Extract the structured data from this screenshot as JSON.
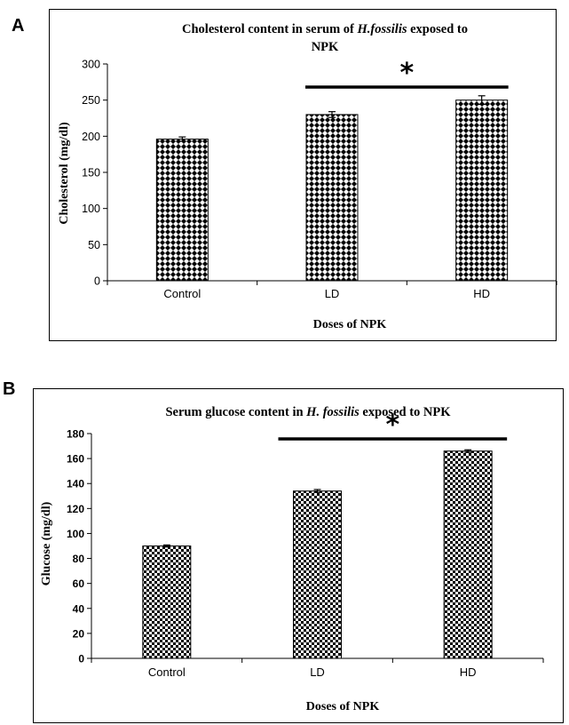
{
  "panels": [
    {
      "letter": "A"
    },
    {
      "letter": "B"
    }
  ],
  "chart_data": [
    {
      "type": "bar",
      "title_line1_prefix": "Cholesterol content in serum  of ",
      "title_line1_italic": "H.fossilis",
      "title_line1_suffix": " exposed to",
      "title_line2": "NPK",
      "xlabel": "Doses of  NPK",
      "ylabel": "Cholesterol (mg/dl)",
      "categories": [
        "Control",
        "LD",
        "HD"
      ],
      "values": [
        196,
        230,
        250
      ],
      "errors": [
        3,
        4,
        6
      ],
      "ylim": [
        0,
        300
      ],
      "yticks": [
        0,
        50,
        100,
        150,
        200,
        250,
        300
      ],
      "significance_marker": "*",
      "significance_span": [
        "LD",
        "HD"
      ],
      "bar_pattern": "black-white diamond check",
      "grid": false
    },
    {
      "type": "bar",
      "title_prefix": "Serum glucose content in ",
      "title_italic": "H. fossilis",
      "title_suffix": " exposed to NPK",
      "xlabel": "Doses of NPK",
      "ylabel": "Glucose (mg/dl)",
      "categories": [
        "Control",
        "LD",
        "HD"
      ],
      "values": [
        90,
        134,
        166
      ],
      "errors": [
        0.8,
        1.2,
        1
      ],
      "ylim": [
        0,
        180
      ],
      "yticks": [
        0,
        20,
        40,
        60,
        80,
        100,
        120,
        140,
        160,
        180
      ],
      "significance_marker": "*",
      "significance_span": [
        "LD",
        "HD"
      ],
      "bar_pattern": "black-white small check",
      "grid": false
    }
  ]
}
